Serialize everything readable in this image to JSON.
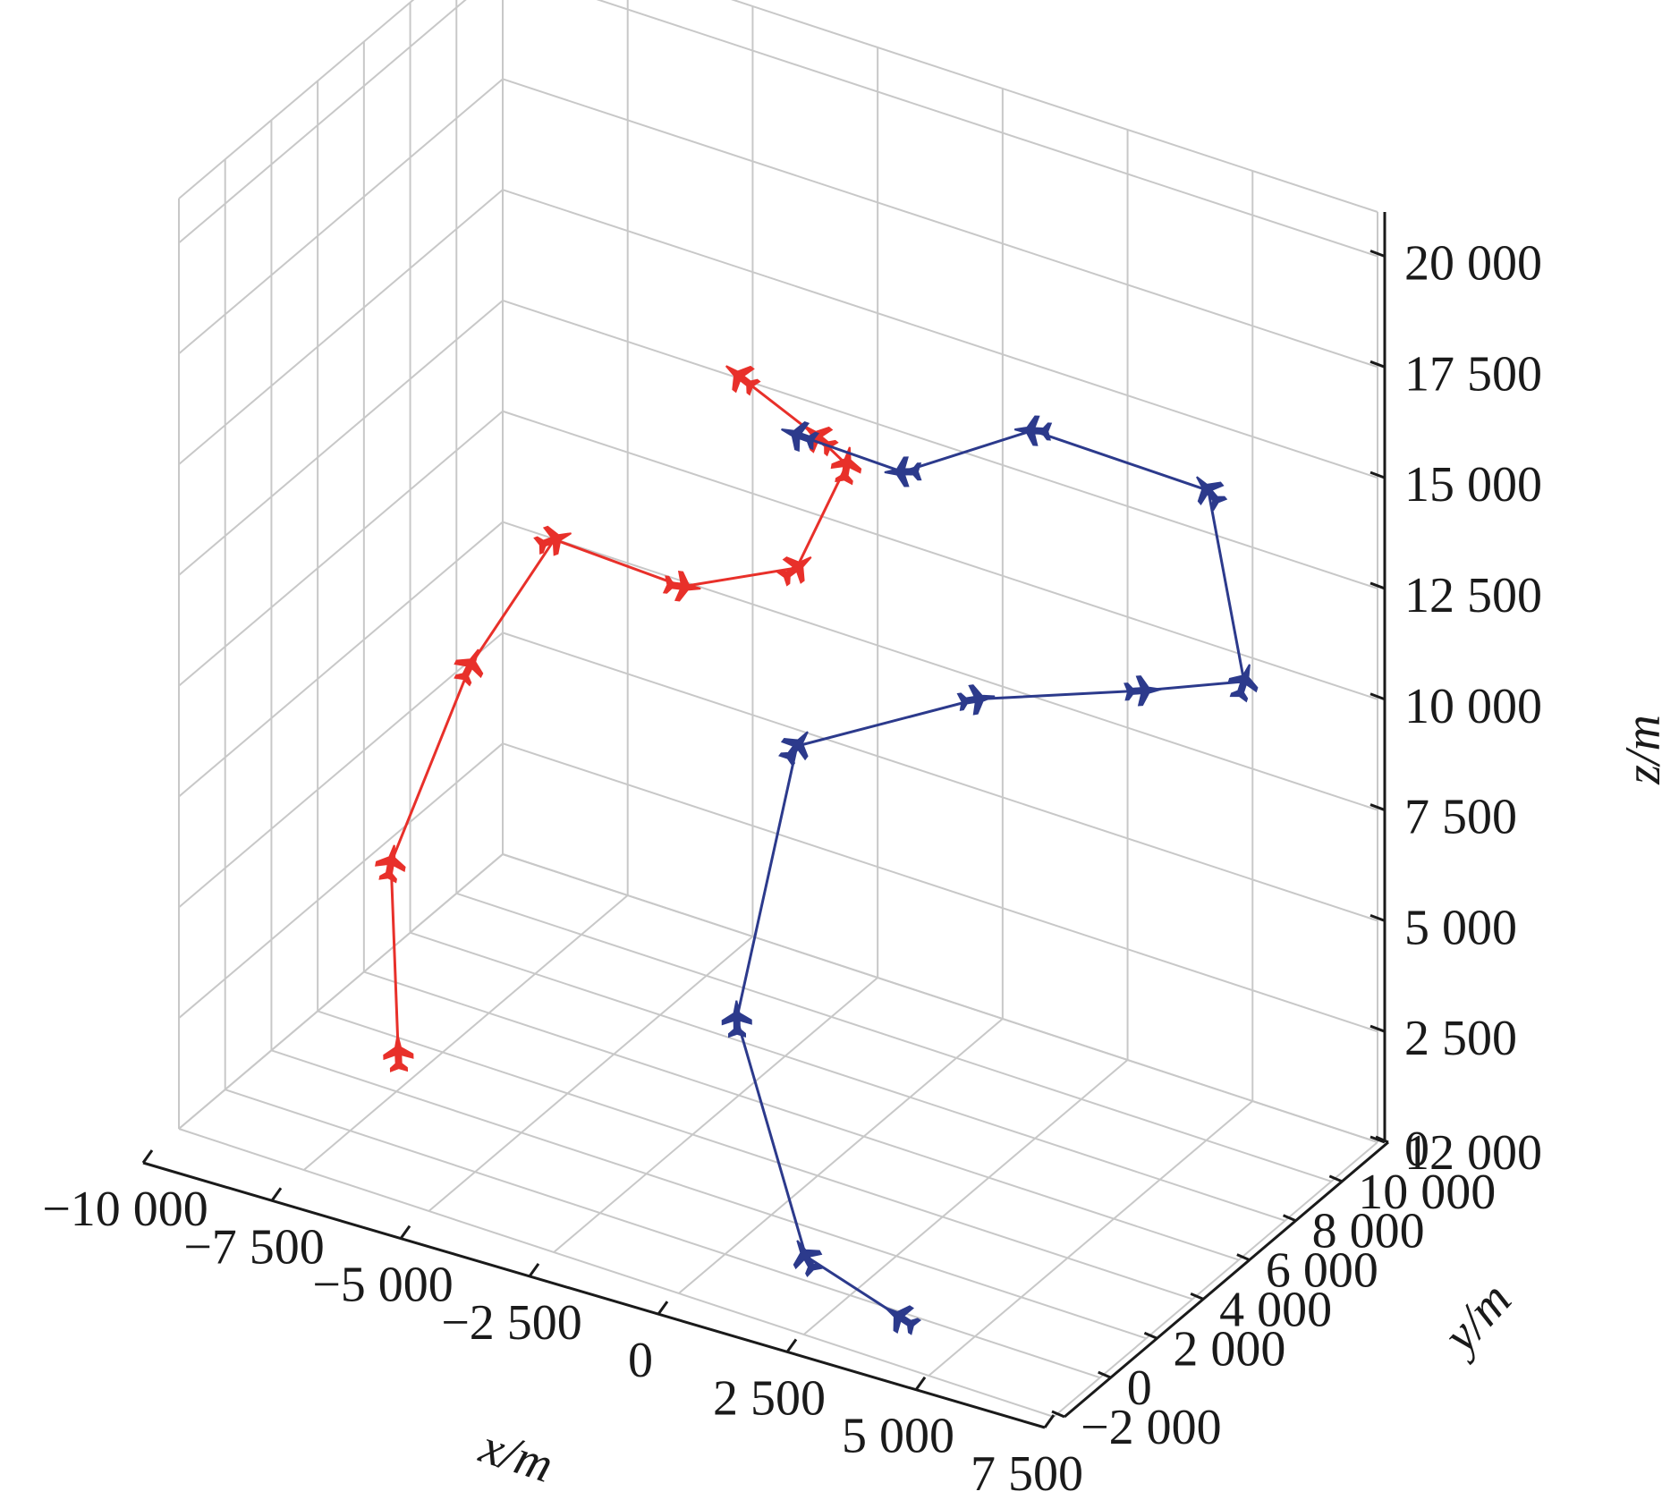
{
  "chart_data": {
    "type": "line3d",
    "xlabel": "x/m",
    "ylabel": "y/m",
    "zlabel": "z/m",
    "xlim": [
      -10000,
      7500
    ],
    "ylim": [
      -2000,
      12000
    ],
    "zlim": [
      0,
      21000
    ],
    "grid": true,
    "x_ticks": [
      {
        "value": -10000,
        "label": "−10 000"
      },
      {
        "value": -7500,
        "label": "−7 500"
      },
      {
        "value": -5000,
        "label": "−5 000"
      },
      {
        "value": -2500,
        "label": "−2 500"
      },
      {
        "value": 0,
        "label": "0"
      },
      {
        "value": 2500,
        "label": "2 500"
      },
      {
        "value": 5000,
        "label": "5 000"
      },
      {
        "value": 7500,
        "label": "7 500"
      }
    ],
    "y_ticks": [
      {
        "value": -2000,
        "label": "−2 000"
      },
      {
        "value": 0,
        "label": "0"
      },
      {
        "value": 2000,
        "label": "2 000"
      },
      {
        "value": 4000,
        "label": "4 000"
      },
      {
        "value": 6000,
        "label": "6 000"
      },
      {
        "value": 8000,
        "label": "8 000"
      },
      {
        "value": 10000,
        "label": "10 000"
      },
      {
        "value": 12000,
        "label": "12 000"
      }
    ],
    "z_ticks": [
      {
        "value": 0,
        "label": "0"
      },
      {
        "value": 2500,
        "label": "2 500"
      },
      {
        "value": 5000,
        "label": "5 000"
      },
      {
        "value": 7500,
        "label": "7 500"
      },
      {
        "value": 10000,
        "label": "10 000"
      },
      {
        "value": 12500,
        "label": "12 500"
      },
      {
        "value": 15000,
        "label": "15 000"
      },
      {
        "value": 17500,
        "label": "17 500"
      },
      {
        "value": 20000,
        "label": "20 000"
      }
    ],
    "series": [
      {
        "color": "#e8302a",
        "points": [
          {
            "x": -7000,
            "y": 1000,
            "z": 1500
          },
          {
            "x": -7700,
            "y": 2200,
            "z": 5000
          },
          {
            "x": -6900,
            "y": 3900,
            "z": 9000
          },
          {
            "x": -6700,
            "y": 7100,
            "z": 10500
          },
          {
            "x": -3900,
            "y": 6600,
            "z": 10700
          },
          {
            "x": -2500,
            "y": 8500,
            "z": 10800
          },
          {
            "x": -2100,
            "y": 9800,
            "z": 12700
          },
          {
            "x": -2900,
            "y": 10300,
            "z": 12800
          },
          {
            "x": -4600,
            "y": 10600,
            "z": 13400
          }
        ]
      },
      {
        "color": "#2c3a8c",
        "points": [
          {
            "x": 3600,
            "y": -200,
            "z": 0
          },
          {
            "x": 1200,
            "y": 900,
            "z": 0
          },
          {
            "x": -1200,
            "y": 3100,
            "z": 3500
          },
          {
            "x": -1200,
            "y": 5700,
            "z": 8500
          },
          {
            "x": 1200,
            "y": 8300,
            "z": 9300
          },
          {
            "x": 3600,
            "y": 10300,
            "z": 9500
          },
          {
            "x": 5200,
            "y": 11200,
            "z": 9900
          },
          {
            "x": 4300,
            "y": 11600,
            "z": 13700
          },
          {
            "x": 1800,
            "y": 9400,
            "z": 15100
          },
          {
            "x": -800,
            "y": 9400,
            "z": 13200
          },
          {
            "x": -3300,
            "y": 10300,
            "z": 12700
          }
        ]
      }
    ]
  }
}
